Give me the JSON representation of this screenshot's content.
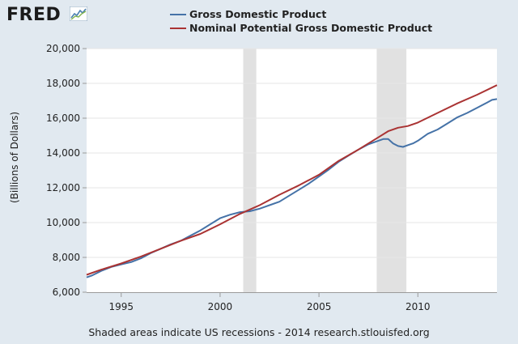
{
  "brand": {
    "logo_text": "FRED",
    "logo_icon": "fred-chart-icon"
  },
  "footnote": "Shaded areas indicate US recessions - 2014 research.stlouisfed.org",
  "chart_data": {
    "type": "line",
    "title": "",
    "xlabel": "",
    "ylabel": "(Billions of Dollars)",
    "xlim": [
      1993.25,
      2014.0
    ],
    "ylim": [
      6000,
      20000
    ],
    "grid": true,
    "legend_position": "top",
    "x_ticks": [
      1995,
      2000,
      2005,
      2010
    ],
    "x_tick_labels": [
      "1995",
      "2000",
      "2005",
      "2010"
    ],
    "y_ticks": [
      6000,
      8000,
      10000,
      12000,
      14000,
      16000,
      18000,
      20000
    ],
    "y_tick_labels": [
      "6,000",
      "8,000",
      "10,000",
      "12,000",
      "14,000",
      "16,000",
      "18,000",
      "20,000"
    ],
    "recessions": [
      [
        2001.17,
        2001.83
      ],
      [
        2007.92,
        2009.42
      ]
    ],
    "series": [
      {
        "name": "Gross Domestic Product",
        "color": "#4572a7",
        "x": [
          1993.25,
          1993.5,
          1994.0,
          1994.5,
          1995.0,
          1995.5,
          1996.0,
          1996.5,
          1997.0,
          1997.5,
          1998.0,
          1998.5,
          1999.0,
          1999.5,
          2000.0,
          2000.5,
          2001.0,
          2001.5,
          2002.0,
          2002.5,
          2003.0,
          2003.5,
          2004.0,
          2004.5,
          2005.0,
          2005.5,
          2006.0,
          2006.5,
          2007.0,
          2007.5,
          2008.0,
          2008.25,
          2008.5,
          2008.75,
          2009.0,
          2009.25,
          2009.5,
          2009.75,
          2010.0,
          2010.5,
          2011.0,
          2011.5,
          2012.0,
          2012.5,
          2013.0,
          2013.5,
          2013.75,
          2014.0
        ],
        "values": [
          6850,
          6950,
          7230,
          7450,
          7600,
          7730,
          7950,
          8250,
          8500,
          8750,
          8950,
          9250,
          9550,
          9900,
          10250,
          10450,
          10600,
          10650,
          10800,
          11000,
          11200,
          11550,
          11900,
          12250,
          12650,
          13050,
          13500,
          13850,
          14200,
          14500,
          14700,
          14800,
          14800,
          14550,
          14400,
          14350,
          14450,
          14550,
          14700,
          15100,
          15350,
          15700,
          16050,
          16300,
          16600,
          16900,
          17050,
          17100
        ]
      },
      {
        "name": "Nominal Potential Gross Domestic Product",
        "color": "#aa3333",
        "x": [
          1993.25,
          1994.0,
          1995.0,
          1996.0,
          1997.0,
          1998.0,
          1999.0,
          2000.0,
          2001.0,
          2002.0,
          2003.0,
          2004.0,
          2005.0,
          2006.0,
          2007.0,
          2008.0,
          2008.5,
          2009.0,
          2009.5,
          2010.0,
          2011.0,
          2012.0,
          2013.0,
          2014.0
        ],
        "values": [
          7000,
          7300,
          7650,
          8050,
          8500,
          8950,
          9350,
          9900,
          10500,
          11000,
          11600,
          12150,
          12750,
          13550,
          14200,
          14900,
          15250,
          15450,
          15550,
          15750,
          16300,
          16850,
          17350,
          17900
        ]
      }
    ]
  }
}
